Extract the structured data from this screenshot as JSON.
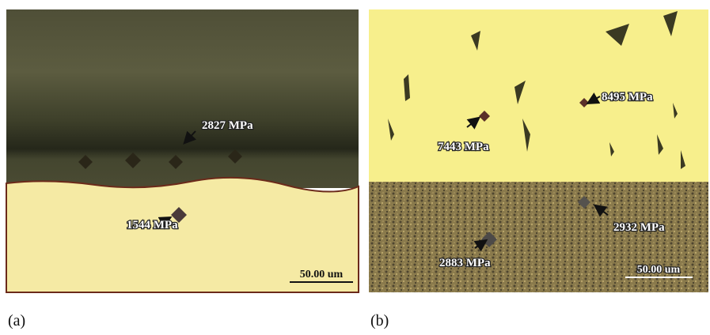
{
  "panels": [
    {
      "label": "(a)",
      "annotations": [
        "2827 MPa",
        "1544 MPa"
      ],
      "scale_bar": "50.00 um"
    },
    {
      "label": "(b)",
      "annotations": [
        "8495 MPa",
        "7443 MPa",
        "2932 MPa",
        "2883 MPa"
      ],
      "scale_bar": "50.00 um"
    }
  ]
}
